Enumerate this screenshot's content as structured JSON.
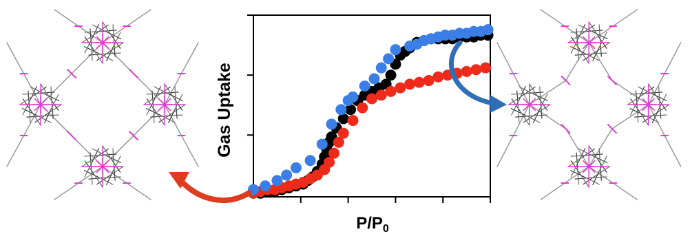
{
  "chart_data": {
    "type": "scatter",
    "ylabel": "Gas Uptake",
    "xlabel": {
      "main": "P/P",
      "sub": "0"
    },
    "xlim": [
      0,
      1
    ],
    "ylim": [
      0,
      1
    ],
    "xticks": [
      0.2,
      0.4,
      0.6,
      0.8,
      1.0
    ],
    "yticks": [
      0.34,
      0.67,
      1.0
    ],
    "grid": false,
    "tick_labels_shown": false,
    "series": [
      {
        "color": "#000000",
        "points": [
          [
            0.0,
            0.02
          ],
          [
            0.03,
            0.02
          ],
          [
            0.06,
            0.03
          ],
          [
            0.09,
            0.03
          ],
          [
            0.12,
            0.04
          ],
          [
            0.15,
            0.05
          ],
          [
            0.18,
            0.06
          ],
          [
            0.21,
            0.07
          ],
          [
            0.23,
            0.09
          ],
          [
            0.25,
            0.11
          ],
          [
            0.27,
            0.14
          ],
          [
            0.29,
            0.18
          ],
          [
            0.3,
            0.22
          ],
          [
            0.31,
            0.26
          ],
          [
            0.32,
            0.3
          ],
          [
            0.33,
            0.33
          ],
          [
            0.35,
            0.38
          ],
          [
            0.38,
            0.43
          ],
          [
            0.41,
            0.48
          ],
          [
            0.44,
            0.53
          ],
          [
            0.47,
            0.56
          ],
          [
            0.5,
            0.58
          ],
          [
            0.53,
            0.6
          ],
          [
            0.56,
            0.62
          ],
          [
            0.58,
            0.67
          ],
          [
            0.6,
            0.73
          ],
          [
            0.62,
            0.78
          ],
          [
            0.64,
            0.8
          ],
          [
            0.66,
            0.82
          ],
          [
            0.69,
            0.85
          ],
          [
            0.72,
            0.86
          ],
          [
            0.75,
            0.87
          ],
          [
            0.78,
            0.87
          ],
          [
            0.81,
            0.87
          ],
          [
            0.84,
            0.87
          ],
          [
            0.87,
            0.88
          ],
          [
            0.9,
            0.88
          ],
          [
            0.93,
            0.88
          ],
          [
            0.96,
            0.89
          ],
          [
            0.99,
            0.89
          ]
        ]
      },
      {
        "color": "#ee2a1b",
        "points": [
          [
            0.0,
            0.02
          ],
          [
            0.03,
            0.03
          ],
          [
            0.06,
            0.04
          ],
          [
            0.09,
            0.04
          ],
          [
            0.12,
            0.05
          ],
          [
            0.15,
            0.06
          ],
          [
            0.18,
            0.07
          ],
          [
            0.21,
            0.08
          ],
          [
            0.24,
            0.1
          ],
          [
            0.27,
            0.12
          ],
          [
            0.3,
            0.15
          ],
          [
            0.32,
            0.19
          ],
          [
            0.34,
            0.24
          ],
          [
            0.36,
            0.3
          ],
          [
            0.38,
            0.35
          ],
          [
            0.42,
            0.42
          ],
          [
            0.46,
            0.49
          ],
          [
            0.5,
            0.54
          ],
          [
            0.54,
            0.56
          ],
          [
            0.58,
            0.58
          ],
          [
            0.62,
            0.6
          ],
          [
            0.66,
            0.62
          ],
          [
            0.7,
            0.63
          ],
          [
            0.74,
            0.64
          ],
          [
            0.78,
            0.66
          ],
          [
            0.82,
            0.67
          ],
          [
            0.86,
            0.68
          ],
          [
            0.9,
            0.69
          ],
          [
            0.94,
            0.7
          ],
          [
            0.98,
            0.71
          ]
        ]
      },
      {
        "color": "#3b7fe6",
        "points": [
          [
            0.0,
            0.04
          ],
          [
            0.05,
            0.06
          ],
          [
            0.1,
            0.09
          ],
          [
            0.14,
            0.12
          ],
          [
            0.18,
            0.16
          ],
          [
            0.24,
            0.2
          ],
          [
            0.29,
            0.29
          ],
          [
            0.33,
            0.4
          ],
          [
            0.37,
            0.48
          ],
          [
            0.4,
            0.53
          ],
          [
            0.42,
            0.55
          ],
          [
            0.47,
            0.61
          ],
          [
            0.51,
            0.65
          ],
          [
            0.54,
            0.71
          ],
          [
            0.57,
            0.76
          ],
          [
            0.6,
            0.81
          ],
          [
            0.66,
            0.83
          ],
          [
            0.69,
            0.84
          ],
          [
            0.72,
            0.86
          ],
          [
            0.75,
            0.87
          ],
          [
            0.78,
            0.88
          ],
          [
            0.81,
            0.89
          ],
          [
            0.84,
            0.89
          ],
          [
            0.87,
            0.9
          ],
          [
            0.9,
            0.9
          ],
          [
            0.93,
            0.91
          ],
          [
            0.96,
            0.91
          ],
          [
            0.99,
            0.92
          ]
        ]
      }
    ]
  },
  "colors": {
    "framework_node": "#e03bd2",
    "framework_strut": "#9e9e9e",
    "arrow": "#e03b20",
    "arrow_blue": "#2f6fb8"
  },
  "illustrations": {
    "left": "framework-structure-open",
    "right": "framework-structure-closed"
  }
}
